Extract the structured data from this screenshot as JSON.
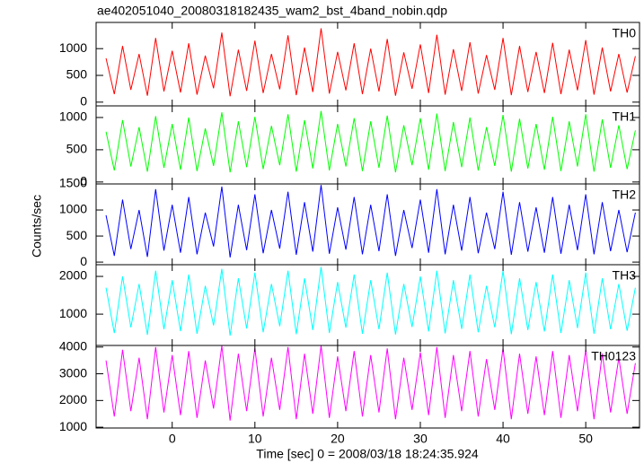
{
  "chart_data": [
    {
      "type": "line",
      "title": "ae402051040_20080318182435_wam2_bst_4band_nobin.qdp",
      "ylabel": "Counts/sec",
      "label": "TH0",
      "color": "#ff0000",
      "x": [
        -8,
        -7,
        -6,
        -5,
        -4,
        -3,
        -2,
        -1,
        0,
        1,
        2,
        3,
        4,
        5,
        6,
        7,
        8,
        9,
        10,
        11,
        12,
        13,
        14,
        15,
        16,
        17,
        18,
        19,
        20,
        21,
        22,
        23,
        24,
        25,
        26,
        27,
        28,
        29,
        30,
        31,
        32,
        33,
        34,
        35,
        36,
        37,
        38,
        39,
        40,
        41,
        42,
        43,
        44,
        45,
        46,
        47,
        48,
        49,
        50,
        51,
        52,
        53,
        54,
        55,
        56
      ],
      "values": [
        820,
        150,
        1050,
        230,
        900,
        120,
        1200,
        200,
        960,
        180,
        1100,
        140,
        870,
        260,
        1300,
        110,
        980,
        210,
        1150,
        170,
        900,
        240,
        1250,
        130,
        1020,
        190,
        1380,
        160,
        940,
        220,
        1100,
        150,
        1000,
        200,
        1180,
        120,
        930,
        250,
        1080,
        170,
        1260,
        140,
        990,
        210,
        1120,
        160,
        880,
        230,
        1200,
        130,
        1050,
        190,
        940,
        170,
        1110,
        150,
        980,
        220,
        1160,
        140,
        1020,
        200,
        900,
        180,
        860
      ],
      "xlim": [
        -9.2,
        56.5
      ],
      "ylim": [
        -70,
        1490
      ],
      "yticks": [
        0,
        500,
        1000
      ]
    },
    {
      "type": "line",
      "label": "TH1",
      "color": "#00ff00",
      "x": [
        -8,
        -7,
        -6,
        -5,
        -4,
        -3,
        -2,
        -1,
        0,
        1,
        2,
        3,
        4,
        5,
        6,
        7,
        8,
        9,
        10,
        11,
        12,
        13,
        14,
        15,
        16,
        17,
        18,
        19,
        20,
        21,
        22,
        23,
        24,
        25,
        26,
        27,
        28,
        29,
        30,
        31,
        32,
        33,
        34,
        35,
        36,
        37,
        38,
        39,
        40,
        41,
        42,
        43,
        44,
        45,
        46,
        47,
        48,
        49,
        50,
        51,
        52,
        53,
        54,
        55,
        56
      ],
      "values": [
        780,
        180,
        960,
        240,
        850,
        160,
        1020,
        220,
        900,
        190,
        1000,
        170,
        830,
        250,
        1080,
        150,
        940,
        230,
        1010,
        200,
        870,
        260,
        1050,
        160,
        960,
        210,
        1100,
        180,
        900,
        240,
        990,
        170,
        940,
        220,
        1030,
        150,
        880,
        260,
        990,
        190,
        1060,
        170,
        930,
        230,
        1000,
        180,
        850,
        250,
        1040,
        160,
        980,
        210,
        900,
        190,
        1010,
        170,
        940,
        240,
        1050,
        160,
        970,
        220,
        880,
        200,
        800
      ],
      "xlim": [
        -9.2,
        56.5
      ],
      "ylim": [
        -30,
        1180
      ],
      "yticks": [
        0,
        500,
        1000
      ]
    },
    {
      "type": "line",
      "label": "TH2",
      "color": "#0000ff",
      "x": [
        -8,
        -7,
        -6,
        -5,
        -4,
        -3,
        -2,
        -1,
        0,
        1,
        2,
        3,
        4,
        5,
        6,
        7,
        8,
        9,
        10,
        11,
        12,
        13,
        14,
        15,
        16,
        17,
        18,
        19,
        20,
        21,
        22,
        23,
        24,
        25,
        26,
        27,
        28,
        29,
        30,
        31,
        32,
        33,
        34,
        35,
        36,
        37,
        38,
        39,
        40,
        41,
        42,
        43,
        44,
        45,
        46,
        47,
        48,
        49,
        50,
        51,
        52,
        53,
        54,
        55,
        56
      ],
      "values": [
        900,
        120,
        1200,
        250,
        1000,
        100,
        1400,
        220,
        1100,
        180,
        1250,
        150,
        950,
        300,
        1450,
        90,
        1100,
        230,
        1300,
        170,
        1000,
        260,
        1350,
        140,
        1150,
        200,
        1480,
        160,
        1050,
        240,
        1250,
        150,
        1100,
        210,
        1300,
        120,
        1000,
        270,
        1200,
        180,
        1400,
        150,
        1100,
        220,
        1250,
        170,
        950,
        250,
        1350,
        140,
        1150,
        200,
        1050,
        180,
        1250,
        160,
        1100,
        230,
        1300,
        150,
        1150,
        210,
        1000,
        190,
        950
      ],
      "xlim": [
        -9.2,
        56.5
      ],
      "ylim": [
        -50,
        1500
      ],
      "yticks": [
        0,
        500,
        1000,
        1500
      ]
    },
    {
      "type": "line",
      "label": "TH3",
      "color": "#00ffff",
      "x": [
        -8,
        -7,
        -6,
        -5,
        -4,
        -3,
        -2,
        -1,
        0,
        1,
        2,
        3,
        4,
        5,
        6,
        7,
        8,
        9,
        10,
        11,
        12,
        13,
        14,
        15,
        16,
        17,
        18,
        19,
        20,
        21,
        22,
        23,
        24,
        25,
        26,
        27,
        28,
        29,
        30,
        31,
        32,
        33,
        34,
        35,
        36,
        37,
        38,
        39,
        40,
        41,
        42,
        43,
        44,
        45,
        46,
        47,
        48,
        49,
        50,
        51,
        52,
        53,
        54,
        55,
        56
      ],
      "values": [
        1700,
        500,
        2000,
        650,
        1800,
        450,
        2150,
        600,
        1900,
        550,
        2050,
        480,
        1750,
        700,
        2200,
        430,
        1950,
        620,
        2100,
        520,
        1800,
        680,
        2150,
        470,
        1950,
        580,
        2250,
        500,
        1850,
        640,
        2050,
        480,
        1900,
        600,
        2100,
        460,
        1800,
        660,
        2000,
        540,
        2150,
        490,
        1900,
        610,
        2050,
        520,
        1750,
        650,
        2150,
        470,
        1950,
        580,
        1850,
        540,
        2050,
        500,
        1900,
        630,
        2100,
        480,
        1950,
        600,
        1800,
        560,
        1700
      ],
      "xlim": [
        -9.2,
        56.5
      ],
      "ylim": [
        170,
        2310
      ],
      "yticks": [
        1000,
        2000
      ]
    },
    {
      "type": "line",
      "label": "TH0123",
      "color": "#ff00ff",
      "xlabel": "Time [sec] 0 = 2008/03/18 18:24:35.924",
      "x": [
        -8,
        -7,
        -6,
        -5,
        -4,
        -3,
        -2,
        -1,
        0,
        1,
        2,
        3,
        4,
        5,
        6,
        7,
        8,
        9,
        10,
        11,
        12,
        13,
        14,
        15,
        16,
        17,
        18,
        19,
        20,
        21,
        22,
        23,
        24,
        25,
        26,
        27,
        28,
        29,
        30,
        31,
        32,
        33,
        34,
        35,
        36,
        37,
        38,
        39,
        40,
        41,
        42,
        43,
        44,
        45,
        46,
        47,
        48,
        49,
        50,
        51,
        52,
        53,
        54,
        55,
        56
      ],
      "values": [
        3500,
        1400,
        3900,
        1600,
        3600,
        1300,
        4000,
        1550,
        3700,
        1450,
        3850,
        1350,
        3500,
        1700,
        4050,
        1250,
        3750,
        1600,
        3950,
        1400,
        3600,
        1650,
        4000,
        1300,
        3750,
        1500,
        4050,
        1350,
        3650,
        1600,
        3850,
        1400,
        3700,
        1550,
        3950,
        1300,
        3600,
        1650,
        3800,
        1450,
        4000,
        1350,
        3700,
        1600,
        3850,
        1400,
        3550,
        1650,
        3950,
        1300,
        3750,
        1500,
        3650,
        1450,
        3850,
        1350,
        3700,
        1600,
        3900,
        1300,
        3750,
        1550,
        3600,
        1500,
        3400
      ],
      "xlim": [
        -9.2,
        56.5
      ],
      "ylim": [
        970,
        4060
      ],
      "yticks": [
        1000,
        2000,
        3000,
        4000
      ],
      "xticks": [
        0,
        10,
        20,
        30,
        40,
        50
      ]
    }
  ]
}
